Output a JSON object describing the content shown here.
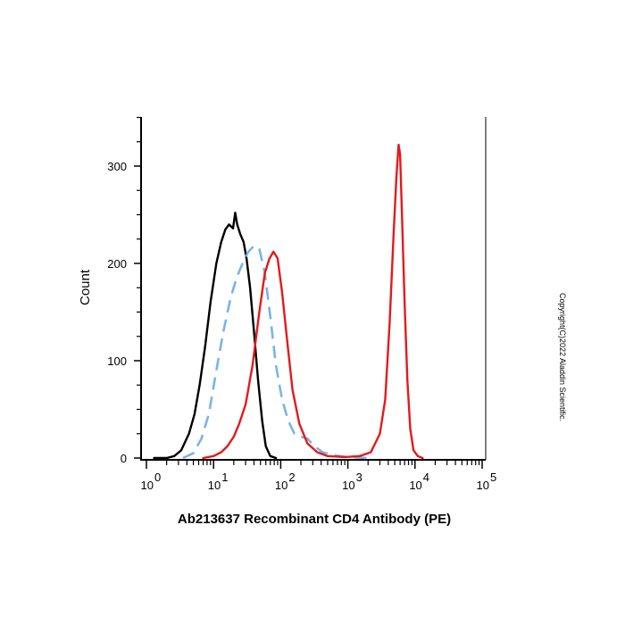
{
  "chart_data": {
    "type": "line",
    "title": "",
    "xlabel": "Ab213637 Recombinant CD4 Antibody (PE)",
    "ylabel": "Count",
    "x_scale": "log",
    "xlim": [
      1,
      100000
    ],
    "ylim": [
      0,
      350
    ],
    "grid": false,
    "x_ticks": [
      {
        "value": 1,
        "base": "10",
        "exp": "0"
      },
      {
        "value": 10,
        "base": "10",
        "exp": "1"
      },
      {
        "value": 100,
        "base": "10",
        "exp": "2"
      },
      {
        "value": 1000,
        "base": "10",
        "exp": "3"
      },
      {
        "value": 10000,
        "base": "10",
        "exp": "4"
      },
      {
        "value": 100000,
        "base": "10",
        "exp": "5"
      }
    ],
    "y_ticks": [
      0,
      100,
      200,
      300
    ],
    "series": [
      {
        "color": "#000000",
        "style": "solid",
        "points": [
          [
            1.3,
            0
          ],
          [
            2.0,
            0
          ],
          [
            2.6,
            2
          ],
          [
            3.3,
            8
          ],
          [
            4.3,
            25
          ],
          [
            5.2,
            45
          ],
          [
            6.2,
            75
          ],
          [
            7.5,
            115
          ],
          [
            9.0,
            160
          ],
          [
            11.0,
            200
          ],
          [
            13.0,
            222
          ],
          [
            15.0,
            235
          ],
          [
            17.0,
            240
          ],
          [
            19.5,
            236
          ],
          [
            21.0,
            252
          ],
          [
            22.5,
            240
          ],
          [
            25.0,
            230
          ],
          [
            28.0,
            222
          ],
          [
            31.0,
            205
          ],
          [
            35.0,
            175
          ],
          [
            40.0,
            130
          ],
          [
            46.0,
            80
          ],
          [
            53.0,
            38
          ],
          [
            60.0,
            12
          ],
          [
            70.0,
            2
          ],
          [
            85.0,
            0
          ]
        ]
      },
      {
        "color": "#7ab4e6",
        "style": "dashed",
        "points": [
          [
            3.5,
            0
          ],
          [
            5.0,
            5
          ],
          [
            6.6,
            20
          ],
          [
            8.5,
            45
          ],
          [
            11.0,
            90
          ],
          [
            14.0,
            130
          ],
          [
            18.0,
            165
          ],
          [
            22.0,
            185
          ],
          [
            27.0,
            200
          ],
          [
            33.0,
            212
          ],
          [
            40.0,
            218
          ],
          [
            48.0,
            215
          ],
          [
            58.0,
            190
          ],
          [
            70.0,
            145
          ],
          [
            85.0,
            95
          ],
          [
            105.0,
            60
          ],
          [
            130.0,
            38
          ],
          [
            160.0,
            25
          ],
          [
            200.0,
            22
          ],
          [
            250.0,
            20
          ],
          [
            320.0,
            12
          ],
          [
            420.0,
            6
          ],
          [
            600.0,
            3
          ],
          [
            1000.0,
            1
          ],
          [
            2000.0,
            0
          ]
        ]
      },
      {
        "color": "#e31a1c",
        "style": "solid",
        "points": [
          [
            7.0,
            0
          ],
          [
            10.0,
            2
          ],
          [
            13.0,
            6
          ],
          [
            16.0,
            12
          ],
          [
            20.0,
            22
          ],
          [
            24.0,
            35
          ],
          [
            30.0,
            55
          ],
          [
            38.0,
            95
          ],
          [
            48.0,
            150
          ],
          [
            58.0,
            190
          ],
          [
            68.0,
            205
          ],
          [
            78.0,
            212
          ],
          [
            90.0,
            205
          ],
          [
            105.0,
            170
          ],
          [
            125.0,
            120
          ],
          [
            150.0,
            70
          ],
          [
            190.0,
            35
          ],
          [
            250.0,
            15
          ],
          [
            350.0,
            6
          ],
          [
            500.0,
            2
          ],
          [
            900.0,
            1
          ],
          [
            1500.0,
            2
          ],
          [
            2200.0,
            6
          ],
          [
            3000.0,
            25
          ],
          [
            3600.0,
            60
          ],
          [
            4200.0,
            140
          ],
          [
            4800.0,
            230
          ],
          [
            5300.0,
            290
          ],
          [
            5700.0,
            322
          ],
          [
            6000.0,
            312
          ],
          [
            6400.0,
            250
          ],
          [
            7000.0,
            160
          ],
          [
            7700.0,
            80
          ],
          [
            8500.0,
            30
          ],
          [
            9500.0,
            8
          ],
          [
            11000.0,
            2
          ],
          [
            13000.0,
            0
          ]
        ]
      }
    ]
  },
  "copyright": "Copyright(C)2022 Aladdin Scientific."
}
